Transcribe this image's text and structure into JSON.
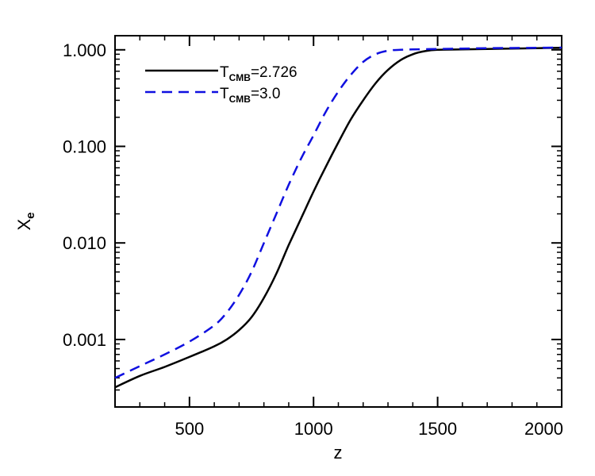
{
  "chart_data": {
    "type": "line",
    "xlabel": "z",
    "ylabel": "X",
    "ylabel_sub": "e",
    "xlim": [
      200,
      2000
    ],
    "ylim": [
      0.0002,
      1.4
    ],
    "yscale": "log",
    "xticks": [
      500,
      1000,
      1500,
      2000
    ],
    "xtick_labels": [
      "500",
      "1000",
      "1500",
      "2000"
    ],
    "yticks": [
      0.001,
      0.01,
      0.1,
      1.0
    ],
    "ytick_labels": [
      "0.001",
      "0.010",
      "0.100",
      "1.000"
    ],
    "legend_position": "top-left",
    "series": [
      {
        "name_main": "T",
        "name_sub": "CMB",
        "name_value": "=2.726",
        "color": "#000000",
        "dash": "solid",
        "x": [
          200,
          300,
          400,
          500,
          600,
          650,
          700,
          750,
          800,
          850,
          900,
          950,
          1000,
          1050,
          1100,
          1150,
          1200,
          1250,
          1300,
          1350,
          1400,
          1450,
          1500,
          1600,
          1700,
          1800,
          1900,
          2000
        ],
        "y": [
          0.00032,
          0.00042,
          0.00052,
          0.00066,
          0.00085,
          0.001,
          0.00125,
          0.0017,
          0.0027,
          0.0048,
          0.0095,
          0.018,
          0.034,
          0.062,
          0.11,
          0.19,
          0.3,
          0.45,
          0.62,
          0.78,
          0.9,
          0.97,
          1.0,
          1.01,
          1.02,
          1.03,
          1.04,
          1.05
        ]
      },
      {
        "name_main": "T",
        "name_sub": "CMB",
        "name_value": "=3.0",
        "color": "#1010e0",
        "dash": "dashed",
        "x": [
          200,
          300,
          400,
          500,
          600,
          650,
          700,
          750,
          800,
          850,
          900,
          950,
          1000,
          1050,
          1100,
          1150,
          1200,
          1250,
          1300,
          1350,
          1400,
          1500,
          1600,
          1700,
          1800,
          1900,
          2000
        ],
        "y": [
          0.0004,
          0.00053,
          0.0007,
          0.00095,
          0.0014,
          0.0019,
          0.0029,
          0.005,
          0.01,
          0.02,
          0.04,
          0.075,
          0.13,
          0.23,
          0.37,
          0.55,
          0.75,
          0.9,
          0.98,
          1.0,
          1.01,
          1.02,
          1.03,
          1.04,
          1.045,
          1.05,
          1.055
        ]
      }
    ]
  }
}
